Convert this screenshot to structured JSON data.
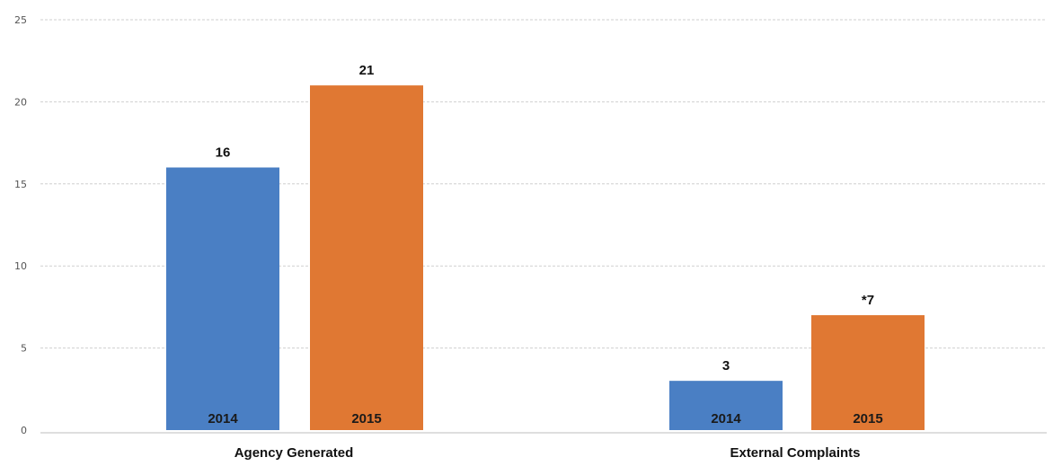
{
  "chart_data": {
    "type": "bar",
    "title": "",
    "xlabel": "",
    "ylabel": "",
    "ylim": [
      0,
      25
    ],
    "yticks": [
      0,
      5,
      10,
      15,
      20,
      25
    ],
    "grid": true,
    "categories": [
      "Agency Generated",
      "External Complaints"
    ],
    "bars": [
      {
        "category": "Agency Generated",
        "year_label": "2014",
        "value": 16,
        "data_label": "16",
        "color": "#4a7fc4"
      },
      {
        "category": "Agency Generated",
        "year_label": "2015",
        "value": 21,
        "data_label": "21",
        "color": "#e07833"
      },
      {
        "category": "External Complaints",
        "year_label": "2014",
        "value": 3,
        "data_label": "3",
        "color": "#4a7fc4"
      },
      {
        "category": "External Complaints",
        "year_label": "2015",
        "value": 7,
        "data_label": "*7",
        "color": "#e07833"
      }
    ]
  }
}
